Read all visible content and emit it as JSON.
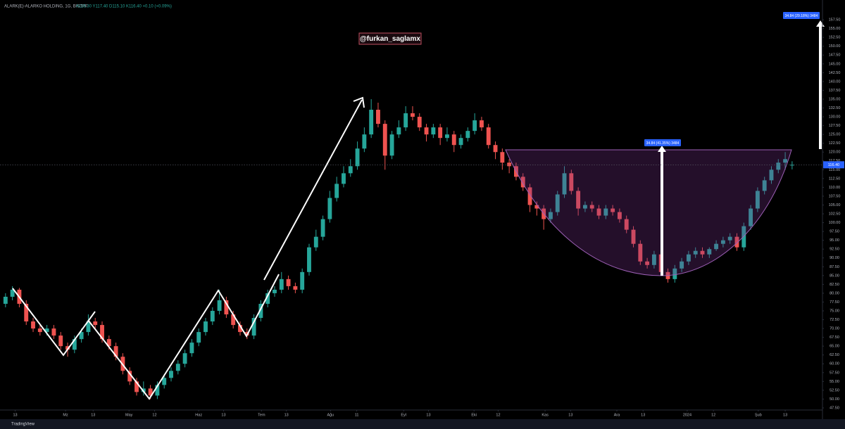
{
  "header": {
    "ticker": "ALARK(E)-ALARKO HOLDING, 1G, BISTPF",
    "ohlc_text": "A116.30 Y117.40 D115.10 K116.40 +0.10 (+0.09%)"
  },
  "watermark": "@furkan_saglamx",
  "footer": "TradingView",
  "chart_data": {
    "type": "candlestick",
    "up_color": "#26a69a",
    "down_color": "#ef5350",
    "grid": false,
    "xlim": [
      -0.8,
      118.4
    ],
    "ylim": [
      46.9,
      163.1
    ],
    "xticks": [
      {
        "value": 1.4,
        "label": "13"
      },
      {
        "value": 8.7,
        "label": "Mz"
      },
      {
        "value": 12.7,
        "label": "13"
      },
      {
        "value": 17.9,
        "label": "May"
      },
      {
        "value": 21.6,
        "label": "12"
      },
      {
        "value": 28,
        "label": "Haz"
      },
      {
        "value": 31.6,
        "label": "13"
      },
      {
        "value": 37.1,
        "label": "Tem"
      },
      {
        "value": 40.7,
        "label": "13"
      },
      {
        "value": 47.1,
        "label": "Ağu"
      },
      {
        "value": 50.9,
        "label": "11"
      },
      {
        "value": 57.7,
        "label": "Eyl"
      },
      {
        "value": 61.3,
        "label": "13"
      },
      {
        "value": 67.9,
        "label": "Eki"
      },
      {
        "value": 71.4,
        "label": "12"
      },
      {
        "value": 78.2,
        "label": "Kas"
      },
      {
        "value": 81.9,
        "label": "13"
      },
      {
        "value": 88.6,
        "label": "Ara"
      },
      {
        "value": 92.4,
        "label": "13"
      },
      {
        "value": 98.8,
        "label": "2024"
      },
      {
        "value": 102.6,
        "label": "12"
      },
      {
        "value": 109.1,
        "label": "Şub"
      },
      {
        "value": 113,
        "label": "13"
      }
    ],
    "yticks": [
      {
        "value": 47.5,
        "label": "47.50"
      },
      {
        "value": 50,
        "label": "50.00"
      },
      {
        "value": 52.5,
        "label": "52.50"
      },
      {
        "value": 55,
        "label": "55.00"
      },
      {
        "value": 57.5,
        "label": "57.50"
      },
      {
        "value": 60,
        "label": "60.00"
      },
      {
        "value": 62.5,
        "label": "62.50"
      },
      {
        "value": 65,
        "label": "65.00"
      },
      {
        "value": 67.5,
        "label": "67.50"
      },
      {
        "value": 70,
        "label": "70.00"
      },
      {
        "value": 72.5,
        "label": "72.50"
      },
      {
        "value": 75,
        "label": "75.00"
      },
      {
        "value": 77.5,
        "label": "77.50"
      },
      {
        "value": 80,
        "label": "80.00"
      },
      {
        "value": 82.5,
        "label": "82.50"
      },
      {
        "value": 85,
        "label": "85.00"
      },
      {
        "value": 87.5,
        "label": "87.50"
      },
      {
        "value": 90,
        "label": "90.00"
      },
      {
        "value": 92.5,
        "label": "92.50"
      },
      {
        "value": 95,
        "label": "95.00"
      },
      {
        "value": 97.5,
        "label": "97.50"
      },
      {
        "value": 100,
        "label": "100.00"
      },
      {
        "value": 102.5,
        "label": "102.50"
      },
      {
        "value": 105,
        "label": "105.00"
      },
      {
        "value": 107.5,
        "label": "107.50"
      },
      {
        "value": 110,
        "label": "110.00"
      },
      {
        "value": 112.5,
        "label": "112.50"
      },
      {
        "value": 115,
        "label": "115.00"
      },
      {
        "value": 117.5,
        "label": "117.50"
      },
      {
        "value": 120,
        "label": "120.00"
      },
      {
        "value": 122.5,
        "label": "122.50"
      },
      {
        "value": 125,
        "label": "125.00"
      },
      {
        "value": 127.5,
        "label": "127.50"
      },
      {
        "value": 130,
        "label": "130.00"
      },
      {
        "value": 132.5,
        "label": "132.50"
      },
      {
        "value": 135,
        "label": "135.00"
      },
      {
        "value": 137.5,
        "label": "137.50"
      },
      {
        "value": 140,
        "label": "140.00"
      },
      {
        "value": 142.5,
        "label": "142.50"
      },
      {
        "value": 145,
        "label": "145.00"
      },
      {
        "value": 147.5,
        "label": "147.50"
      },
      {
        "value": 150,
        "label": "150.00"
      },
      {
        "value": 152.5,
        "label": "152.50"
      },
      {
        "value": 155,
        "label": "155.00"
      },
      {
        "value": 157.5,
        "label": "157.50"
      }
    ],
    "last_price": {
      "value": 116.4,
      "label": "116.40"
    },
    "annotations": [
      "34.84 (41.35%) 3484",
      "34.84 (29.18%) 3484"
    ],
    "candles": [
      [
        77,
        80,
        76,
        79
      ],
      [
        79,
        82,
        78,
        81
      ],
      [
        81,
        81.5,
        76,
        77
      ],
      [
        77,
        78,
        71,
        72
      ],
      [
        72,
        73,
        69,
        70
      ],
      [
        70,
        71,
        68,
        69
      ],
      [
        69,
        71,
        68,
        70
      ],
      [
        70,
        71,
        67,
        68
      ],
      [
        68,
        69,
        64,
        65
      ],
      [
        65,
        66,
        62,
        64
      ],
      [
        64,
        68,
        63,
        67
      ],
      [
        67,
        70,
        66,
        69
      ],
      [
        69,
        74,
        68,
        72
      ],
      [
        72,
        73,
        70,
        71
      ],
      [
        71,
        72,
        66,
        67
      ],
      [
        67,
        68,
        64,
        65
      ],
      [
        65,
        66,
        61,
        62
      ],
      [
        62,
        63,
        57,
        58
      ],
      [
        58,
        59,
        54,
        55
      ],
      [
        55,
        56,
        51,
        52
      ],
      [
        52,
        55,
        51,
        53
      ],
      [
        53,
        54,
        50,
        51
      ],
      [
        51,
        55,
        50,
        54
      ],
      [
        54,
        57,
        53,
        56
      ],
      [
        56,
        59,
        55,
        58
      ],
      [
        58,
        61,
        57,
        60
      ],
      [
        60,
        64,
        59,
        63
      ],
      [
        63,
        67,
        62,
        66
      ],
      [
        66,
        70,
        65,
        69
      ],
      [
        69,
        73,
        68,
        72
      ],
      [
        72,
        76,
        71,
        75
      ],
      [
        75,
        81,
        74,
        78
      ],
      [
        78,
        79,
        73,
        74
      ],
      [
        74,
        75,
        70,
        71
      ],
      [
        71,
        72,
        68,
        69
      ],
      [
        69,
        70,
        67,
        68
      ],
      [
        68,
        74,
        67,
        73
      ],
      [
        73,
        78,
        72,
        77
      ],
      [
        77,
        81,
        76,
        80
      ],
      [
        80,
        82,
        79,
        81
      ],
      [
        81,
        86,
        80,
        84
      ],
      [
        84,
        85,
        81,
        82
      ],
      [
        82,
        83,
        80,
        81
      ],
      [
        81,
        87,
        80,
        86
      ],
      [
        86,
        94,
        85,
        93
      ],
      [
        93,
        98,
        92,
        96
      ],
      [
        96,
        102,
        95,
        101
      ],
      [
        101,
        109,
        100,
        107
      ],
      [
        107,
        113,
        106,
        111
      ],
      [
        111,
        116,
        110,
        114
      ],
      [
        114,
        118,
        113,
        116
      ],
      [
        116,
        123,
        115,
        121
      ],
      [
        121,
        127,
        120,
        125
      ],
      [
        125,
        135,
        124,
        132
      ],
      [
        132,
        134,
        127,
        128
      ],
      [
        128,
        129,
        115,
        119
      ],
      [
        119,
        126,
        118,
        125
      ],
      [
        125,
        129,
        124,
        127
      ],
      [
        127,
        133,
        126,
        131
      ],
      [
        131,
        133,
        129,
        130
      ],
      [
        130,
        131,
        126,
        127
      ],
      [
        127,
        128,
        123,
        125
      ],
      [
        125,
        128,
        124,
        127
      ],
      [
        127,
        128,
        122,
        124
      ],
      [
        124,
        127,
        123,
        125
      ],
      [
        125,
        126,
        120,
        122
      ],
      [
        122,
        125,
        121,
        124
      ],
      [
        124,
        127,
        123,
        126
      ],
      [
        126,
        131,
        125,
        129
      ],
      [
        129,
        130,
        126,
        127
      ],
      [
        127,
        128,
        121,
        122
      ],
      [
        122,
        123,
        118,
        120
      ],
      [
        120,
        121,
        115,
        117
      ],
      [
        117,
        118,
        114,
        116
      ],
      [
        116,
        117,
        112,
        113
      ],
      [
        113,
        114,
        109,
        110
      ],
      [
        110,
        111,
        103,
        105
      ],
      [
        105,
        106,
        102,
        104
      ],
      [
        104,
        105,
        98,
        101
      ],
      [
        101,
        104,
        100,
        103
      ],
      [
        103,
        109,
        102,
        108
      ],
      [
        108,
        116,
        107,
        114
      ],
      [
        114,
        115,
        108,
        109
      ],
      [
        109,
        110,
        102,
        104
      ],
      [
        104,
        106,
        103,
        105
      ],
      [
        105,
        106,
        103,
        104
      ],
      [
        104,
        105,
        101,
        102
      ],
      [
        102,
        105,
        101,
        104
      ],
      [
        104,
        105,
        102,
        103
      ],
      [
        103,
        104,
        100,
        101
      ],
      [
        101,
        102,
        97,
        98
      ],
      [
        98,
        99,
        93,
        94
      ],
      [
        94,
        95,
        88,
        89
      ],
      [
        89,
        90,
        87,
        88
      ],
      [
        88,
        92,
        87,
        91
      ],
      [
        91,
        92,
        85,
        86
      ],
      [
        86,
        87,
        83,
        84
      ],
      [
        84,
        88,
        83,
        87
      ],
      [
        87,
        90,
        86,
        89
      ],
      [
        89,
        92,
        88,
        91
      ],
      [
        91,
        93,
        90,
        92
      ],
      [
        92,
        93,
        90,
        91
      ],
      [
        91,
        93,
        90,
        92.5
      ],
      [
        92.5,
        95,
        92,
        94
      ],
      [
        94,
        96,
        93,
        95
      ],
      [
        95,
        97,
        94,
        96
      ],
      [
        96,
        97,
        92,
        93
      ],
      [
        93,
        100,
        92,
        99
      ],
      [
        99,
        105,
        98,
        104
      ],
      [
        104,
        110,
        103,
        109
      ],
      [
        109,
        113,
        108,
        112
      ],
      [
        112,
        116,
        111,
        115
      ],
      [
        115,
        118,
        114,
        117
      ],
      [
        117,
        120,
        115,
        118
      ],
      [
        116.3,
        117.4,
        115.1,
        116.4
      ]
    ]
  }
}
